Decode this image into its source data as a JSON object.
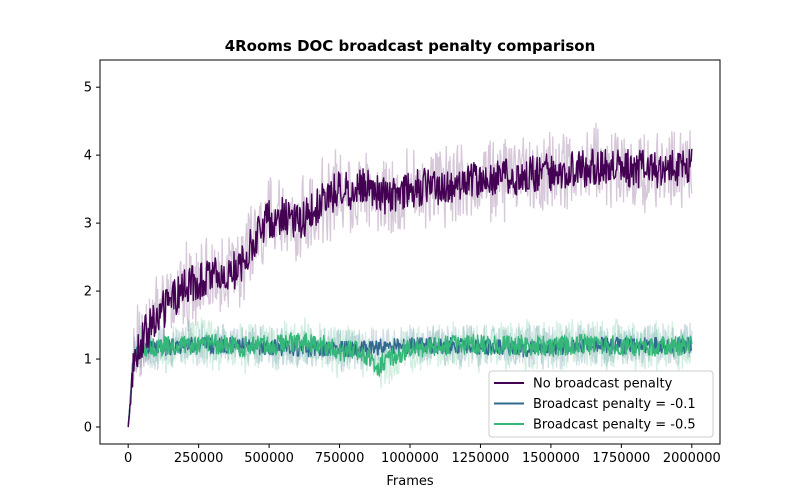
{
  "chart_data": {
    "type": "line",
    "title": "4Rooms DOC broadcast penalty comparison",
    "xlabel": "Frames",
    "ylabel": "",
    "xlim": [
      -100000,
      2100000
    ],
    "ylim": [
      -0.25,
      5.4
    ],
    "xticks": [
      0,
      250000,
      500000,
      750000,
      1000000,
      1250000,
      1500000,
      1750000,
      2000000
    ],
    "xtick_labels": [
      "0",
      "250000",
      "500000",
      "750000",
      "1000000",
      "1250000",
      "1500000",
      "1750000",
      "2000000"
    ],
    "yticks": [
      0,
      1,
      2,
      3,
      4,
      5
    ],
    "ytick_labels": [
      "0",
      "1",
      "2",
      "3",
      "4",
      "5"
    ],
    "legend_position": "lower-right",
    "grid": false,
    "series": [
      {
        "name": "No broadcast penalty",
        "color": "#440154",
        "x": [
          0,
          20000,
          50000,
          100000,
          150000,
          200000,
          250000,
          300000,
          350000,
          400000,
          450000,
          500000,
          550000,
          600000,
          650000,
          700000,
          750000,
          800000,
          850000,
          900000,
          950000,
          1000000,
          1100000,
          1200000,
          1300000,
          1400000,
          1500000,
          1600000,
          1700000,
          1800000,
          1900000,
          2000000
        ],
        "values": [
          0.0,
          1.0,
          1.3,
          1.6,
          1.85,
          2.05,
          2.15,
          2.2,
          2.25,
          2.35,
          2.8,
          3.05,
          3.1,
          3.0,
          3.15,
          3.35,
          3.5,
          3.45,
          3.6,
          3.4,
          3.45,
          3.5,
          3.55,
          3.6,
          3.65,
          3.7,
          3.75,
          3.8,
          3.85,
          3.8,
          3.8,
          3.85
        ],
        "noise": 0.28,
        "band": 0.55
      },
      {
        "name": "Broadcast penalty = -0.1",
        "color": "#31688e",
        "x": [
          0,
          20000,
          50000,
          100000,
          200000,
          400000,
          600000,
          800000,
          1000000,
          1200000,
          1400000,
          1600000,
          1800000,
          2000000
        ],
        "values": [
          0.0,
          1.05,
          1.15,
          1.15,
          1.2,
          1.2,
          1.15,
          1.15,
          1.2,
          1.2,
          1.15,
          1.2,
          1.2,
          1.2
        ],
        "noise": 0.12,
        "band": 0.3
      },
      {
        "name": "Broadcast penalty = -0.5",
        "color": "#35b779",
        "x": [
          0,
          20000,
          50000,
          100000,
          200000,
          300000,
          400000,
          500000,
          600000,
          700000,
          750000,
          800000,
          850000,
          880000,
          920000,
          1000000,
          1100000,
          1200000,
          1300000,
          1400000,
          1500000,
          1600000,
          1700000,
          1800000,
          1900000,
          2000000
        ],
        "values": [
          0.0,
          1.05,
          1.15,
          1.18,
          1.2,
          1.22,
          1.18,
          1.2,
          1.25,
          1.2,
          1.1,
          1.15,
          1.05,
          0.85,
          1.0,
          1.15,
          1.2,
          1.22,
          1.2,
          1.2,
          1.18,
          1.22,
          1.2,
          1.2,
          1.18,
          1.2
        ],
        "noise": 0.15,
        "band": 0.35
      }
    ]
  }
}
